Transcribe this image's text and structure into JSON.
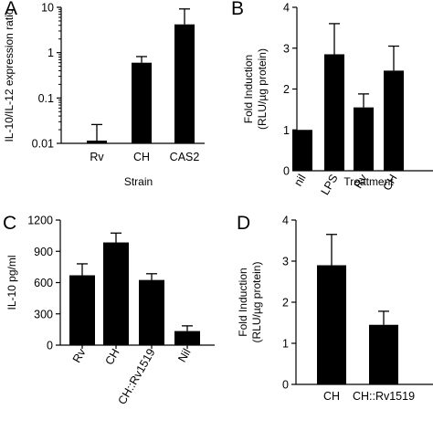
{
  "chart_data": [
    {
      "panel": "A",
      "type": "bar",
      "ylabel": "IL-10/IL-12 expression ratio",
      "xlabel": "Strain",
      "yscale": "log",
      "ylim": [
        0.01,
        10
      ],
      "yticks": [
        "0.01",
        "0.1",
        "1",
        "10"
      ],
      "categories": [
        "Rv",
        "CH",
        "CAS2"
      ],
      "values": [
        0.0115,
        0.6,
        4.2
      ],
      "error_upper": [
        0.026,
        0.82,
        9.2
      ]
    },
    {
      "panel": "B",
      "type": "bar",
      "ylabel": "Fold Induction (RLU/µg protein)",
      "xlabel": "Treatment",
      "ylim": [
        0,
        4
      ],
      "yticks": [
        "0",
        "1",
        "2",
        "3",
        "4"
      ],
      "categories": [
        "nil",
        "LPS",
        "Rv",
        "CH"
      ],
      "values": [
        1.0,
        2.85,
        1.55,
        2.45
      ],
      "error_upper": [
        1.0,
        3.6,
        1.88,
        3.05
      ]
    },
    {
      "panel": "C",
      "type": "bar",
      "ylabel": "IL-10 pg/ml",
      "xlabel": "",
      "ylim": [
        0,
        1200
      ],
      "yticks": [
        "0",
        "300",
        "600",
        "900",
        "1200"
      ],
      "categories": [
        "Rv",
        "CH",
        "CH::Rv1519",
        "Nil"
      ],
      "values": [
        670,
        985,
        625,
        135
      ],
      "error_upper": [
        780,
        1075,
        685,
        185
      ]
    },
    {
      "panel": "D",
      "type": "bar",
      "ylabel": "Fold Induction (RLU/µg protein)",
      "xlabel": "",
      "ylim": [
        0,
        4
      ],
      "yticks": [
        "0",
        "1",
        "2",
        "3",
        "4"
      ],
      "categories": [
        "CH",
        "CH::Rv1519"
      ],
      "values": [
        2.9,
        1.45
      ],
      "error_upper": [
        3.65,
        1.78
      ]
    }
  ]
}
